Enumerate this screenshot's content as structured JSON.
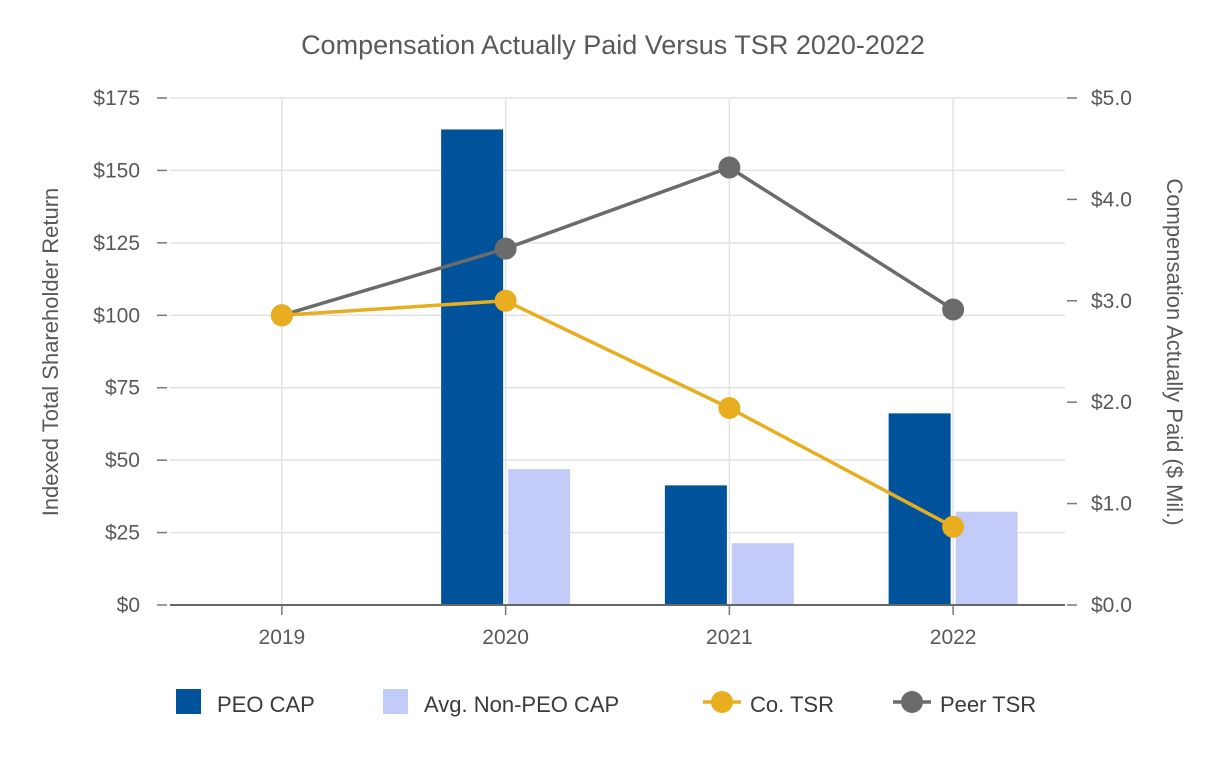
{
  "chart_data": {
    "type": "bar+line",
    "title": "Compensation Actually Paid Versus TSR 2020-2022",
    "categories": [
      "2019",
      "2020",
      "2021",
      "2022"
    ],
    "left_axis": {
      "label": "Indexed Total Shareholder Return",
      "min": 0,
      "max": 175,
      "ticks": [
        0,
        25,
        50,
        75,
        100,
        125,
        150,
        175
      ],
      "tick_labels": [
        "$0",
        "$25",
        "$50",
        "$75",
        "$100",
        "$125",
        "$150",
        "$175"
      ]
    },
    "right_axis": {
      "label": "Compensation Actually Paid ($ Mil.)",
      "min": 0,
      "max": 5,
      "ticks": [
        0,
        1,
        2,
        3,
        4,
        5
      ],
      "tick_labels": [
        "$0.0",
        "$1.0",
        "$2.0",
        "$3.0",
        "$4.0",
        "$5.0"
      ]
    },
    "bar_series": [
      {
        "name": "PEO CAP",
        "axis": "right",
        "color": "#00529b",
        "values": [
          null,
          4.69,
          1.18,
          1.89
        ]
      },
      {
        "name": "Avg. Non-PEO CAP",
        "axis": "right",
        "color": "#c3cbf8",
        "values": [
          null,
          1.34,
          0.61,
          0.92
        ]
      }
    ],
    "line_series": [
      {
        "name": "Co. TSR",
        "axis": "left",
        "color": "#e8ae1f",
        "values": [
          100,
          105,
          68,
          27
        ]
      },
      {
        "name": "Peer TSR",
        "axis": "left",
        "color": "#6b6b6b",
        "values": [
          100,
          123,
          151,
          102
        ]
      }
    ],
    "legend": [
      "PEO CAP",
      "Avg. Non-PEO CAP",
      "Co. TSR",
      "Peer TSR"
    ],
    "legend_position": "bottom",
    "grid": true
  }
}
